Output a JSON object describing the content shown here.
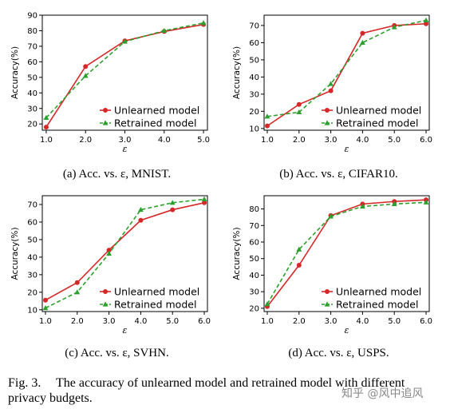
{
  "figure": {
    "caption_prefix": "Fig. 3.",
    "caption_line1": "The accuracy of unlearned model and retrained model with different",
    "caption_line2": "privacy budgets.",
    "watermark": "知乎 @风中追风"
  },
  "colors": {
    "unlearned": "#d62728",
    "retrained": "#2ca02c",
    "axis": "#000000"
  },
  "chart_data": [
    {
      "type": "line",
      "caption": "(a) Acc. vs. ε, MNIST.",
      "xlabel": "ε",
      "ylabel": "Accuracy(%)",
      "x": [
        1.0,
        2.0,
        3.0,
        4.0,
        5.0
      ],
      "x_ticks": [
        "1.0",
        "2.0",
        "3.0",
        "4.0",
        "5.0"
      ],
      "xlim": [
        0.9,
        5.1
      ],
      "ylim": [
        16,
        90
      ],
      "y_ticks": [
        20,
        30,
        40,
        50,
        60,
        70,
        80,
        90
      ],
      "legend": "bottom-right",
      "series": [
        {
          "name": "Unlearned model",
          "values": [
            18,
            57,
            73.5,
            79.5,
            84
          ]
        },
        {
          "name": "Retrained model",
          "values": [
            24,
            51,
            73,
            80,
            85
          ]
        }
      ]
    },
    {
      "type": "line",
      "caption": "(b) Acc. vs. ε, CIFAR10.",
      "xlabel": "ε",
      "ylabel": "Accuracy(%)",
      "x": [
        1.0,
        2.0,
        3.0,
        4.0,
        5.0,
        6.0
      ],
      "x_ticks": [
        "1.0",
        "2.0",
        "3.0",
        "4.0",
        "5.0",
        "6.0"
      ],
      "xlim": [
        0.9,
        6.1
      ],
      "ylim": [
        9,
        76
      ],
      "y_ticks": [
        10,
        20,
        30,
        40,
        50,
        60,
        70
      ],
      "legend": "bottom-right",
      "series": [
        {
          "name": "Unlearned model",
          "values": [
            11.5,
            24,
            32,
            65.5,
            70,
            71
          ]
        },
        {
          "name": "Retrained model",
          "values": [
            17,
            19.5,
            36,
            60,
            69,
            73
          ]
        }
      ]
    },
    {
      "type": "line",
      "caption": "(c) Acc. vs. ε, SVHN.",
      "xlabel": "ε",
      "ylabel": "Accuracy(%)",
      "x": [
        1.0,
        2.0,
        3.0,
        4.0,
        5.0,
        6.0
      ],
      "x_ticks": [
        "1.0",
        "2.0",
        "3.0",
        "4.0",
        "5.0",
        "6.0"
      ],
      "xlim": [
        0.9,
        6.1
      ],
      "ylim": [
        9,
        75
      ],
      "y_ticks": [
        10,
        20,
        30,
        40,
        50,
        60,
        70
      ],
      "legend": "bottom-right",
      "series": [
        {
          "name": "Unlearned model",
          "values": [
            15.5,
            25.5,
            44,
            61,
            67,
            71
          ]
        },
        {
          "name": "Retrained model",
          "values": [
            11,
            20,
            42,
            67,
            71,
            73
          ]
        }
      ]
    },
    {
      "type": "line",
      "caption": "(d) Acc. vs. ε, USPS.",
      "xlabel": "ε",
      "ylabel": "Accuracy(%)",
      "x": [
        1.0,
        2.0,
        3.0,
        4.0,
        5.0,
        6.0
      ],
      "x_ticks": [
        "1.0",
        "2.0",
        "3.0",
        "4.0",
        "5.0",
        "6.0"
      ],
      "xlim": [
        0.9,
        6.1
      ],
      "ylim": [
        18,
        88
      ],
      "y_ticks": [
        20,
        30,
        40,
        50,
        60,
        70,
        80
      ],
      "legend": "bottom-right",
      "series": [
        {
          "name": "Unlearned model",
          "values": [
            21,
            46,
            76,
            83,
            84.5,
            85.5
          ]
        },
        {
          "name": "Retrained model",
          "values": [
            22.5,
            55.5,
            75.5,
            81.5,
            83,
            84
          ]
        }
      ]
    }
  ]
}
